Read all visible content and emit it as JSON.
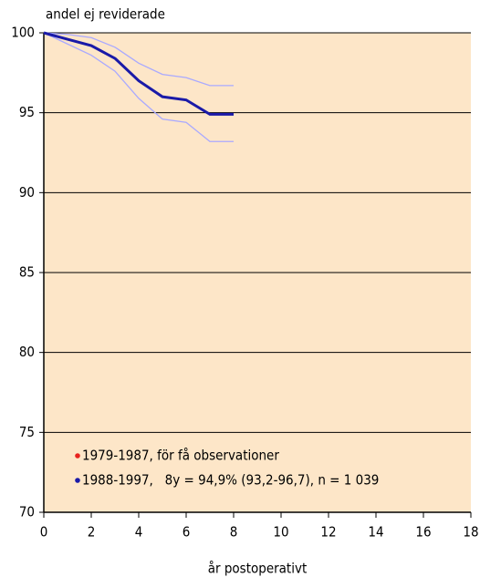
{
  "chart_data": {
    "type": "line",
    "ylabel": "andel ej reviderade",
    "xlabel": "år postoperativt",
    "x": [
      0,
      1,
      2,
      3,
      4,
      5,
      6,
      7,
      8
    ],
    "series": [
      {
        "name": "1979-1987, för få observationer",
        "color": "#e8231f",
        "values": [
          null,
          null,
          null,
          null,
          null,
          null,
          null,
          null,
          null
        ]
      },
      {
        "name": "1988-1997,   8y = 94,9% (93,2-96,7), n = 1 039",
        "color": "#1a1aa8",
        "values": [
          100,
          99.6,
          99.2,
          98.4,
          97.0,
          96.0,
          95.8,
          94.9,
          94.9
        ],
        "band_color": "#a9a9ff",
        "upper": [
          100,
          99.9,
          99.7,
          99.1,
          98.1,
          97.4,
          97.2,
          96.7,
          96.7
        ],
        "lower": [
          100,
          99.3,
          98.6,
          97.6,
          95.9,
          94.6,
          94.4,
          93.2,
          93.2
        ]
      }
    ],
    "xlim": [
      0,
      18
    ],
    "xticks": [
      0,
      2,
      4,
      6,
      8,
      10,
      12,
      14,
      16,
      18
    ],
    "ylim": [
      70,
      100
    ],
    "yticks": [
      70,
      75,
      80,
      85,
      90,
      95,
      100
    ],
    "grid": true,
    "background": "#fde6c8",
    "legend": "lower left"
  }
}
